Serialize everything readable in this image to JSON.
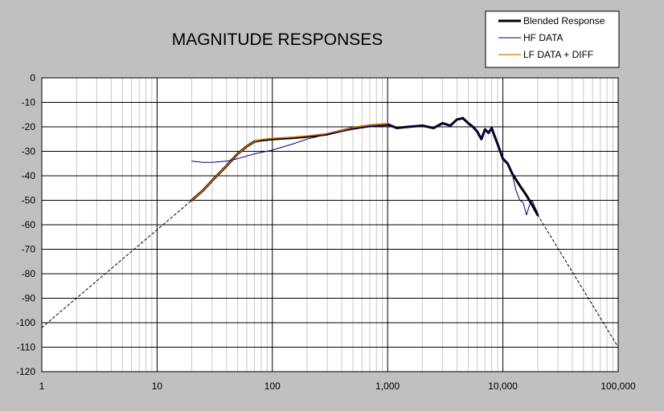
{
  "chart_data": {
    "type": "line",
    "title": "MAGNITUDE RESPONSES",
    "xscale": "log",
    "xlim": [
      1,
      100000
    ],
    "ylim": [
      -120,
      0
    ],
    "xticks": [
      1,
      10,
      100,
      1000,
      10000,
      100000
    ],
    "xtick_labels": [
      "1",
      "10",
      "100",
      "1,000",
      "10,000",
      "100,000"
    ],
    "yticks": [
      0,
      -10,
      -20,
      -30,
      -40,
      -50,
      -60,
      -70,
      -80,
      -90,
      -100,
      -110,
      -120
    ],
    "grid": true,
    "legend_position": "top-right",
    "series": [
      {
        "name": "Blended Response",
        "color": "#000000",
        "x": [
          20,
          25,
          30,
          40,
          50,
          60,
          70,
          80,
          100,
          150,
          200,
          300,
          500,
          700,
          1000,
          1200,
          1500,
          2000,
          2500,
          3000,
          3500,
          4000,
          4500,
          5000,
          5500,
          6000,
          6500,
          7000,
          7500,
          8000,
          8500,
          9000,
          10000,
          11000,
          12000,
          14000,
          16000,
          18000,
          20000
        ],
        "y": [
          -50,
          -46,
          -42,
          -36,
          -31,
          -28,
          -26,
          -25.5,
          -25,
          -24.5,
          -24,
          -23,
          -20.5,
          -19.5,
          -19,
          -20.5,
          -20,
          -19.5,
          -20.5,
          -18.5,
          -19.5,
          -17,
          -16.5,
          -18.5,
          -20,
          -22,
          -25,
          -21,
          -22.5,
          -20.5,
          -24,
          -27,
          -33,
          -35,
          -39,
          -44,
          -48,
          -52,
          -56
        ]
      },
      {
        "name": "HF DATA",
        "color": "#00007f",
        "x": [
          20,
          25,
          30,
          40,
          50,
          70,
          100,
          150,
          200,
          300,
          500,
          700,
          1000,
          1200,
          1500,
          2000,
          2500,
          3000,
          3500,
          4000,
          4500,
          5000,
          5500,
          6000,
          6500,
          7000,
          7500,
          8000,
          8500,
          9000,
          10000,
          11000,
          12000,
          13000,
          14000,
          15000,
          16000,
          17000,
          18000,
          19000,
          20000
        ],
        "y": [
          -34,
          -34.5,
          -34.5,
          -34,
          -33,
          -31,
          -29.5,
          -27,
          -25,
          -23,
          -21,
          -20,
          -19.5,
          -20.5,
          -20,
          -19.5,
          -20.5,
          -18.5,
          -19.5,
          -17,
          -16,
          -18.5,
          -20,
          -22,
          -25,
          -21,
          -22.5,
          -20.5,
          -24,
          -27,
          -33,
          -35,
          -39,
          -46,
          -50,
          -51,
          -56,
          -52,
          -50,
          -53,
          -55
        ]
      },
      {
        "name": "LF DATA + DIFF",
        "color": "#e07000",
        "x": [
          20,
          25,
          30,
          40,
          50,
          60,
          70,
          80,
          100,
          150,
          200,
          300,
          500,
          700,
          1000
        ],
        "y": [
          -50,
          -46,
          -42,
          -36,
          -31,
          -28,
          -26,
          -25.2,
          -24.7,
          -24.2,
          -23.7,
          -22.8,
          -20.3,
          -19.3,
          -18.8
        ]
      },
      {
        "name": "",
        "style": "dashed",
        "color": "#000000",
        "x": [
          1,
          20
        ],
        "y": [
          -102,
          -50
        ]
      },
      {
        "name": "",
        "style": "dashed",
        "color": "#000000",
        "x": [
          20000,
          100000
        ],
        "y": [
          -56,
          -110
        ]
      }
    ]
  }
}
